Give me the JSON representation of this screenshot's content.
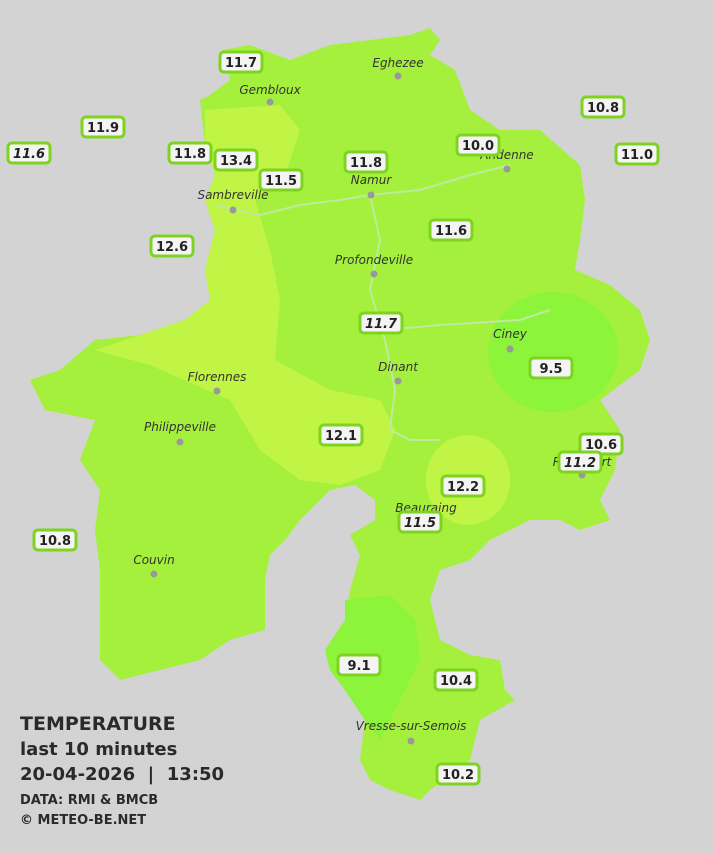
{
  "title": "TEMPERATURE",
  "subtitle": "last 10 minutes",
  "timestamp": "20-04-2026  |  13:50",
  "source": "DATA: RMI & BMCB",
  "copyright": "© METEO-BE.NET",
  "towns": [
    "Gembloux",
    "Eghezee",
    "Andenne",
    "Namur",
    "Sambreville",
    "Profondeville",
    "Ciney",
    "Dinant",
    "Florennes",
    "Philippeville",
    "Rochefort",
    "Beauraing",
    "Couvin",
    "Vresse-sur-Semois"
  ],
  "stations": [
    {
      "label": "11.7",
      "italic": false
    },
    {
      "label": "11.9",
      "italic": false
    },
    {
      "label": "11.6",
      "italic": true
    },
    {
      "label": "11.8",
      "italic": false
    },
    {
      "label": "13.4",
      "italic": false
    },
    {
      "label": "11.5",
      "italic": false
    },
    {
      "label": "11.8",
      "italic": false
    },
    {
      "label": "10.0",
      "italic": false
    },
    {
      "label": "10.8",
      "italic": false
    },
    {
      "label": "11.0",
      "italic": false
    },
    {
      "label": "12.6",
      "italic": false
    },
    {
      "label": "11.6",
      "italic": false
    },
    {
      "label": "11.7",
      "italic": true
    },
    {
      "label": "9.5",
      "italic": false
    },
    {
      "label": "12.1",
      "italic": false
    },
    {
      "label": "10.6",
      "italic": false
    },
    {
      "label": "11.2",
      "italic": true
    },
    {
      "label": "12.2",
      "italic": false
    },
    {
      "label": "11.5",
      "italic": true
    },
    {
      "label": "10.8",
      "italic": false
    },
    {
      "label": "9.1",
      "italic": false
    },
    {
      "label": "10.4",
      "italic": false
    },
    {
      "label": "10.2",
      "italic": false
    }
  ]
}
